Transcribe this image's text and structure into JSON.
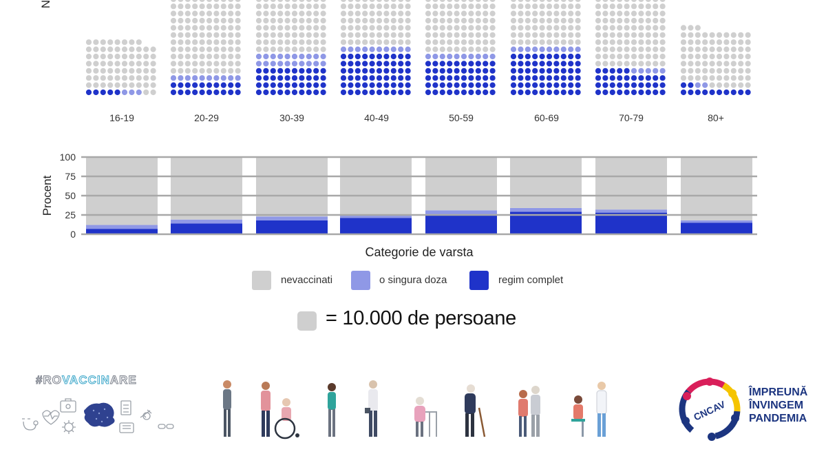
{
  "waffle": {
    "partial_axis_label": "N",
    "categories": [
      "16-19",
      "20-29",
      "30-39",
      "40-49",
      "50-59",
      "60-69",
      "70-79",
      "80+"
    ],
    "columns_per_group": 10,
    "units": [
      {
        "total": 78,
        "single_dose": 3,
        "complete": 5
      },
      {
        "total": 148,
        "single_dose": 10,
        "complete": 20
      },
      {
        "total": 148,
        "single_dose": 20,
        "complete": 40
      },
      {
        "total": 148,
        "single_dose": 10,
        "complete": 60
      },
      {
        "total": 148,
        "single_dose": 10,
        "complete": 50
      },
      {
        "total": 142,
        "single_dose": 10,
        "complete": 60
      },
      {
        "total": 148,
        "single_dose": 5,
        "complete": 35
      },
      {
        "total": 93,
        "single_dose": 2,
        "complete": 12
      }
    ]
  },
  "chart_data": {
    "type": "bar",
    "stacked": true,
    "categories": [
      "16-19",
      "20-29",
      "30-39",
      "40-49",
      "50-59",
      "60-69",
      "70-79",
      "80+"
    ],
    "series": [
      {
        "name": "regim complet",
        "values": [
          7,
          14,
          18,
          21,
          25,
          29,
          28,
          15
        ]
      },
      {
        "name": "o singura doza",
        "values": [
          5,
          5,
          5,
          5,
          6,
          5,
          4,
          3
        ]
      },
      {
        "name": "nevaccinati",
        "values": [
          88,
          81,
          77,
          74,
          69,
          66,
          68,
          82
        ]
      }
    ],
    "xlabel": "Categorie de varsta",
    "ylabel": "Procent",
    "ylim": [
      0,
      100
    ],
    "yticks": [
      "0",
      "25",
      "50",
      "75",
      "100"
    ],
    "grid": true,
    "legend_position": "bottom"
  },
  "legend": {
    "items": [
      {
        "label": "nevaccinati",
        "color": "#cfcfcf"
      },
      {
        "label": "o singura doza",
        "color": "#8f98e6"
      },
      {
        "label": "regim complet",
        "color": "#1f33c9"
      }
    ]
  },
  "scale_note": "= 10.000 de persoane",
  "colors": {
    "unvaccinated": "#cfcfcf",
    "single_dose": "#8f98e6",
    "complete": "#1f33c9",
    "grid": "#a8a8a8",
    "brand_blue": "#1c3580"
  },
  "footer": {
    "hashtag_prefix": "#RO",
    "hashtag_accent": "VACCIN",
    "hashtag_suffix": "ARE",
    "cncav_label": "CNCAV",
    "slogan_lines": [
      "ÎMPREUNĂ",
      "ÎNVINGEM",
      "PANDEMIA"
    ],
    "icons": [
      "stethoscope-icon",
      "heart-rate-icon",
      "first-aid-kit-icon",
      "virus-icon",
      "romania-map-icon",
      "hospital-icon",
      "clipboard-icon",
      "syringe-icon",
      "pills-icon"
    ],
    "people": [
      "young-man",
      "elderly-in-wheelchair-with-caregiver",
      "young-woman",
      "man-with-briefcase",
      "elderly-woman-with-walker",
      "elderly-man-with-cane",
      "elderly-couple",
      "nurse-vaccinating-patient"
    ]
  }
}
